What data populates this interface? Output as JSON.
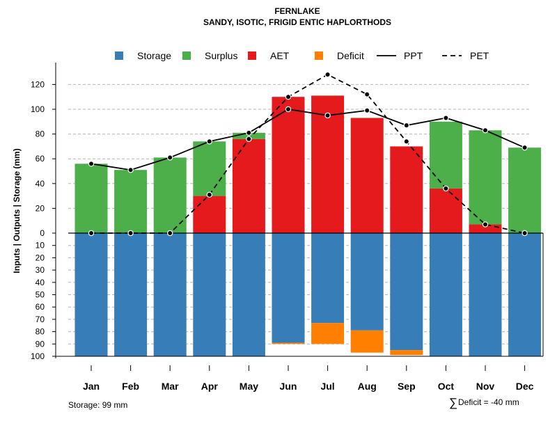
{
  "chart_data": {
    "type": "bar",
    "title": "FERNLAKE",
    "subtitle": "SANDY, ISOTIC, FRIGID ENTIC HAPLORTHODS",
    "ylabel": "Inputs | Outputs | Storage     (mm)",
    "categories": [
      "Jan",
      "Feb",
      "Mar",
      "Apr",
      "May",
      "Jun",
      "Jul",
      "Aug",
      "Sep",
      "Oct",
      "Nov",
      "Dec"
    ],
    "upper_ylim": [
      0,
      130
    ],
    "upper_ticks": [
      "0",
      "20",
      "40",
      "60",
      "80",
      "100",
      "120"
    ],
    "lower_ticks": [
      "0",
      "10",
      "20",
      "30",
      "40",
      "50",
      "60",
      "70",
      "80",
      "90",
      "100"
    ],
    "lower_ylim": [
      0,
      100
    ],
    "series": [
      {
        "name": "AET",
        "color": "#E41A1C",
        "values": [
          0,
          0,
          0,
          30,
          76,
          110,
          111,
          93,
          70,
          36,
          7,
          0
        ]
      },
      {
        "name": "Surplus",
        "color": "#4DAF4A",
        "values": [
          56,
          51,
          61,
          44,
          5,
          0,
          0,
          0,
          0,
          54,
          76,
          69
        ]
      },
      {
        "name": "Storage",
        "color": "#377EB8",
        "values": [
          100,
          100,
          100,
          100,
          100,
          89,
          73,
          79,
          95,
          100,
          100,
          100
        ]
      },
      {
        "name": "Deficit",
        "color": "#FF7F00",
        "values": [
          0,
          0,
          0,
          0,
          0,
          1,
          17,
          18,
          4,
          0,
          0,
          0
        ]
      }
    ],
    "lines": [
      {
        "name": "PPT",
        "style": "solid",
        "values": [
          56,
          51,
          61,
          74,
          81,
          100,
          95,
          99,
          87,
          93,
          83,
          69
        ]
      },
      {
        "name": "PET",
        "style": "dashed",
        "values": [
          0,
          0,
          0,
          31,
          76,
          110,
          128,
          112,
          74,
          36,
          7,
          0
        ]
      }
    ],
    "legend": {
      "placement": "top",
      "entries": [
        {
          "label": "Storage",
          "kind": "box",
          "color": "#377EB8"
        },
        {
          "label": "Surplus",
          "kind": "box",
          "color": "#4DAF4A"
        },
        {
          "label": "AET",
          "kind": "box",
          "color": "#E41A1C"
        },
        {
          "label": "Deficit",
          "kind": "box",
          "color": "#FF7F00"
        },
        {
          "label": "PPT",
          "kind": "line",
          "dash": "none"
        },
        {
          "label": "PET",
          "kind": "line",
          "dash": "dashed"
        }
      ]
    },
    "footnotes": {
      "storage": "Storage: 99 mm",
      "deficit_sum": "Deficit = -40 mm",
      "sum_symbol": "∑"
    }
  }
}
